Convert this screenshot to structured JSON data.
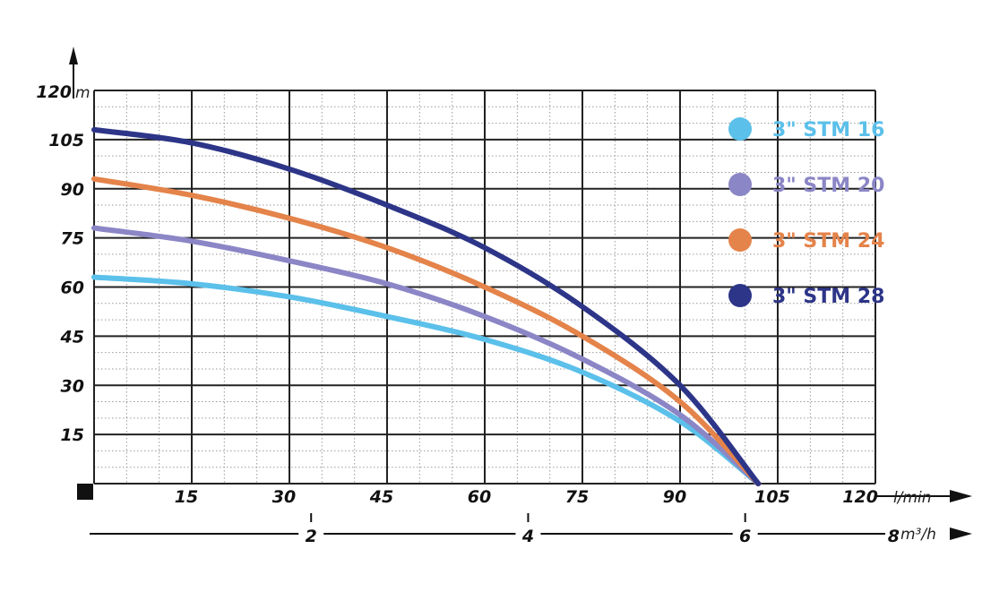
{
  "chart_data": {
    "type": "line",
    "title": "",
    "x": [
      0,
      15,
      30,
      45,
      60,
      75,
      90,
      102
    ],
    "xlim": [
      0,
      120
    ],
    "ylim": [
      0,
      120
    ],
    "x_ticks": [
      "15",
      "30",
      "45",
      "60",
      "75",
      "90",
      "105",
      "120"
    ],
    "y_ticks": [
      "15",
      "30",
      "45",
      "60",
      "75",
      "90",
      "105",
      "120"
    ],
    "x_unit": "l/min",
    "y_unit": "m",
    "secondary_x": {
      "ticks": [
        "2",
        "4",
        "6",
        "8"
      ],
      "unit": "m³/h",
      "values": [
        2,
        4,
        6,
        8
      ]
    },
    "grid": true,
    "legend_position": "top-right",
    "series": [
      {
        "name": "3\" STM 16",
        "color": "#5bc0ea",
        "values": [
          63,
          61,
          57,
          51,
          44,
          34,
          19,
          0
        ]
      },
      {
        "name": "3\" STM 20",
        "color": "#8b86c6",
        "values": [
          78,
          74,
          68,
          61,
          51,
          38,
          21,
          0
        ]
      },
      {
        "name": "3\" STM 24",
        "color": "#e4834a",
        "values": [
          93,
          88,
          81,
          72,
          60,
          45,
          25,
          0
        ]
      },
      {
        "name": "3\" STM 28",
        "color": "#2d3588",
        "values": [
          108,
          104,
          96,
          85,
          72,
          54,
          30,
          0
        ]
      }
    ]
  }
}
